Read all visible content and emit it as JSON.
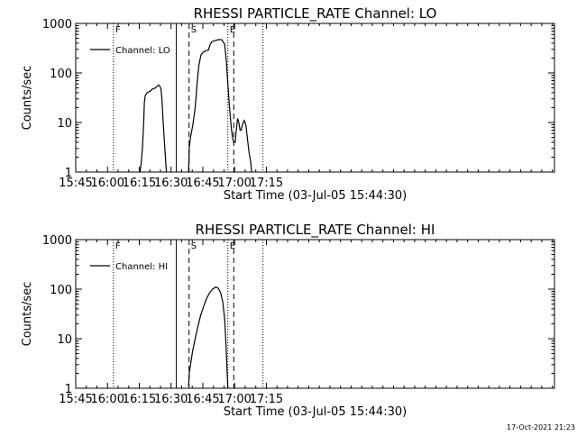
{
  "chart_data": [
    {
      "type": "line",
      "title": "RHESSI PARTICLE_RATE Channel: LO",
      "xlabel": "Start Time (03-Jul-05 15:44:30)",
      "ylabel": "Counts/sec",
      "x_unit": "minutes of day",
      "xlim": [
        945,
        1171
      ],
      "ylim": [
        1,
        1000
      ],
      "y_scale": "log",
      "x_tick_values": [
        945,
        960,
        975,
        990,
        1005,
        1020,
        1035
      ],
      "x_tick_labels": [
        "15:45",
        "16:00",
        "16:15",
        "16:30",
        "16:45",
        "17:00",
        "17:15"
      ],
      "y_tick_values": [
        1,
        10,
        100,
        1000
      ],
      "y_tick_labels": [
        "1",
        "10",
        "100",
        "1000"
      ],
      "legend": {
        "label": "Channel: LO",
        "position": "top-left"
      },
      "markers": [
        {
          "x": 962.8,
          "style": "dotted",
          "label": "F"
        },
        {
          "x": 992.5,
          "style": "solid",
          "label": ""
        },
        {
          "x": 998.5,
          "style": "dashed",
          "label": "S"
        },
        {
          "x": 1016.8,
          "style": "dotted",
          "label": "E"
        },
        {
          "x": 1019.6,
          "style": "dashed",
          "label": ""
        },
        {
          "x": 1033.4,
          "style": "dotted",
          "label": ""
        }
      ],
      "series": [
        {
          "segments": [
            [
              [
                975.3,
                1
              ],
              [
                975.9,
                1.5
              ],
              [
                976.5,
                3
              ],
              [
                977.1,
                10
              ],
              [
                977.4,
                25
              ],
              [
                977.8,
                35
              ],
              [
                978.7,
                40
              ],
              [
                980.1,
                43
              ],
              [
                981.4,
                48
              ],
              [
                982.7,
                50
              ],
              [
                983.6,
                55
              ],
              [
                984.2,
                57
              ],
              [
                984.6,
                55
              ],
              [
                985.2,
                48
              ],
              [
                985.7,
                30
              ],
              [
                986.3,
                10
              ],
              [
                986.9,
                4
              ],
              [
                987.5,
                1.5
              ],
              [
                987.8,
                1
              ]
            ],
            [
              [
                998.3,
                1
              ],
              [
                998.6,
                3
              ],
              [
                999.2,
                5
              ],
              [
                1000.3,
                9
              ],
              [
                1001.4,
                20
              ],
              [
                1002.3,
                60
              ],
              [
                1003.1,
                140
              ],
              [
                1004.1,
                230
              ],
              [
                1005.0,
                260
              ],
              [
                1006.3,
                280
              ],
              [
                1007.6,
                290
              ],
              [
                1008.5,
                380
              ],
              [
                1009.3,
                430
              ],
              [
                1010.8,
                450
              ],
              [
                1012.3,
                470
              ],
              [
                1013.9,
                470
              ],
              [
                1014.5,
                430
              ],
              [
                1015.3,
                380
              ],
              [
                1016.1,
                170
              ],
              [
                1016.8,
                60
              ],
              [
                1017.6,
                20
              ],
              [
                1018.4,
                8
              ],
              [
                1019.0,
                5
              ],
              [
                1019.6,
                4
              ],
              [
                1020.3,
                4
              ],
              [
                1020.8,
                7
              ],
              [
                1021.4,
                12
              ],
              [
                1022.0,
                10
              ],
              [
                1022.6,
                7
              ],
              [
                1023.1,
                7
              ],
              [
                1023.7,
                9
              ],
              [
                1024.5,
                11
              ],
              [
                1025.3,
                9
              ],
              [
                1026.0,
                5
              ],
              [
                1026.8,
                2.5
              ],
              [
                1027.6,
                1.6
              ],
              [
                1028.1,
                1
              ]
            ]
          ]
        }
      ]
    },
    {
      "type": "line",
      "title": "RHESSI PARTICLE_RATE Channel: HI",
      "xlabel": "Start Time (03-Jul-05 15:44:30)",
      "ylabel": "Counts/sec",
      "x_unit": "minutes of day",
      "xlim": [
        945,
        1171
      ],
      "ylim": [
        1,
        1000
      ],
      "y_scale": "log",
      "x_tick_values": [
        945,
        960,
        975,
        990,
        1005,
        1020,
        1035
      ],
      "x_tick_labels": [
        "15:45",
        "16:00",
        "16:15",
        "16:30",
        "16:45",
        "17:00",
        "17:15"
      ],
      "y_tick_values": [
        1,
        10,
        100,
        1000
      ],
      "y_tick_labels": [
        "1",
        "10",
        "100",
        "1000"
      ],
      "legend": {
        "label": "Channel: HI",
        "position": "top-left"
      },
      "markers": [
        {
          "x": 962.8,
          "style": "dotted",
          "label": "F"
        },
        {
          "x": 992.5,
          "style": "solid",
          "label": ""
        },
        {
          "x": 998.5,
          "style": "dashed",
          "label": "S"
        },
        {
          "x": 1016.8,
          "style": "dotted",
          "label": "E"
        },
        {
          "x": 1019.6,
          "style": "dashed",
          "label": ""
        },
        {
          "x": 1033.4,
          "style": "dotted",
          "label": ""
        }
      ],
      "series": [
        {
          "segments": [
            [
              [
                998.3,
                1.1
              ],
              [
                998.6,
                2
              ],
              [
                999.2,
                3
              ],
              [
                1000.3,
                6
              ],
              [
                1001.4,
                10
              ],
              [
                1002.6,
                17
              ],
              [
                1004.0,
                30
              ],
              [
                1005.4,
                45
              ],
              [
                1006.8,
                65
              ],
              [
                1008.2,
                85
              ],
              [
                1009.6,
                100
              ],
              [
                1011.0,
                110
              ],
              [
                1012.3,
                105
              ],
              [
                1013.4,
                85
              ],
              [
                1014.4,
                55
              ],
              [
                1015.3,
                25
              ],
              [
                1015.9,
                8
              ],
              [
                1016.5,
                2
              ],
              [
                1016.8,
                1
              ]
            ]
          ]
        }
      ]
    }
  ],
  "footer": {
    "date": "17-Oct-2021 21:23"
  }
}
